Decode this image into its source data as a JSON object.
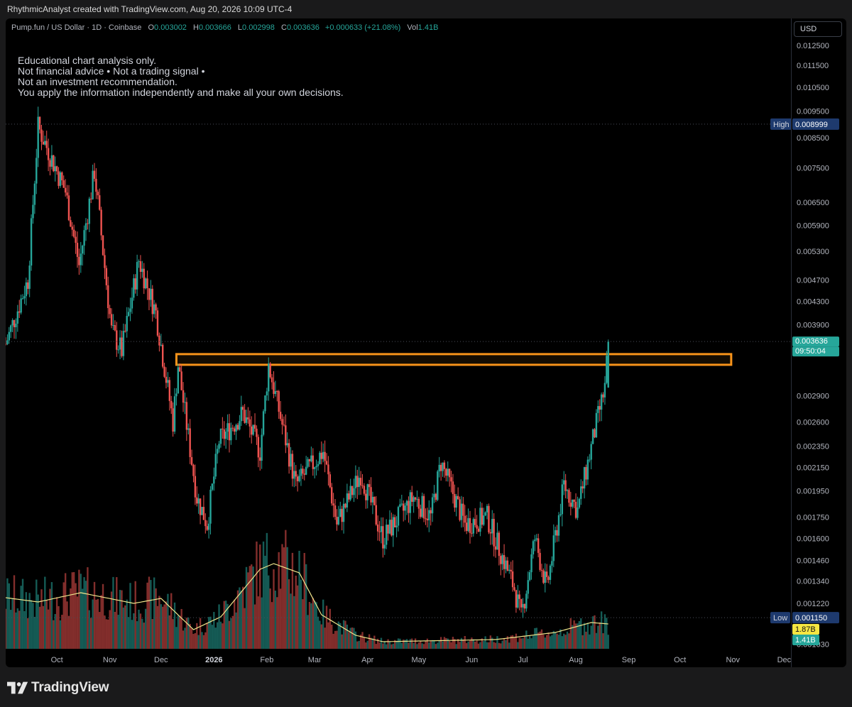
{
  "header": {
    "caption": "RhythmicAnalyst created with TradingView.com, Aug 20, 2026 10:09 UTC-4"
  },
  "legend": {
    "symbol": "Pump.fun / US Dollar · 1D · Coinbase",
    "o_label": "O",
    "o": "0.003002",
    "h_label": "H",
    "h": "0.003666",
    "l_label": "L",
    "l": "0.002998",
    "c_label": "C",
    "c": "0.003636",
    "change": "+0.000633 (+21.08%)",
    "vol_label": "Vol",
    "vol": "1.41B"
  },
  "disclaimer": [
    "Educational chart analysis only.",
    "Not financial advice • Not a trading signal •",
    "Not an investment recommendation.",
    "You apply the information independently and make all your own decisions."
  ],
  "currency_button": "USD",
  "footer": {
    "brand": "TradingView"
  },
  "colors": {
    "up": "#26a69a",
    "down": "#ef5350",
    "zone": "#f7931a",
    "volume_ma": "#f0e68c",
    "high_tag": "#1e3a6e",
    "low_tag": "#1e3a6e",
    "price_tag": "#26a69a",
    "volma_tag": "#f5e642"
  },
  "icons": {
    "logo": "tradingview-logo-icon",
    "chart": "candlestick-chart"
  },
  "chart_data": {
    "type": "candlestick",
    "title": "Pump.fun / US Dollar · 1D · Coinbase",
    "y_scale": "log",
    "ylim": [
      0.00101,
      0.0131
    ],
    "y_ticks": [
      "0.012500",
      "0.011500",
      "0.010500",
      "0.009500",
      "0.008500",
      "0.007500",
      "0.006500",
      "0.005900",
      "0.005300",
      "0.004700",
      "0.004300",
      "0.003900",
      "0.002900",
      "0.002600",
      "0.002350",
      "0.002150",
      "0.001950",
      "0.001750",
      "0.001600",
      "0.001460",
      "0.001340",
      "0.001220",
      "0.001030"
    ],
    "x_ticks": [
      {
        "label": "Oct",
        "date": "2025-10-01"
      },
      {
        "label": "Nov",
        "date": "2025-11-01"
      },
      {
        "label": "Dec",
        "date": "2025-12-01"
      },
      {
        "label": "2026",
        "date": "2026-01-01",
        "bold": true
      },
      {
        "label": "Feb",
        "date": "2026-02-01"
      },
      {
        "label": "Mar",
        "date": "2026-03-01"
      },
      {
        "label": "Apr",
        "date": "2026-04-01"
      },
      {
        "label": "May",
        "date": "2026-05-01"
      },
      {
        "label": "Jun",
        "date": "2026-06-01"
      },
      {
        "label": "Jul",
        "date": "2026-07-01"
      },
      {
        "label": "Aug",
        "date": "2026-08-01"
      },
      {
        "label": "Sep",
        "date": "2026-09-01"
      },
      {
        "label": "Oct",
        "date": "2026-10-01"
      },
      {
        "label": "Nov",
        "date": "2026-11-01"
      },
      {
        "label": "Dec",
        "date": "2026-12-01"
      }
    ],
    "x_range": [
      "2025-09-01",
      "2026-12-05"
    ],
    "key_prices": [
      "2025-09-01",
      0.0036,
      "2025-09-14",
      0.0047,
      "2025-09-20",
      0.0089,
      "2025-10-06",
      0.0068,
      "2025-10-14",
      0.005,
      "2025-10-23",
      0.0074,
      "2025-11-02",
      0.0038,
      "2025-11-08",
      0.0035,
      "2025-11-18",
      0.0051,
      "2025-11-28",
      0.0041,
      "2025-12-08",
      0.0026,
      "2025-12-11",
      0.0033,
      "2025-12-22",
      0.0019,
      "2025-12-28",
      0.0017,
      "2026-01-04",
      0.0024,
      "2026-01-18",
      0.0027,
      "2026-01-28",
      0.0023,
      "2026-02-02",
      0.0033,
      "2026-02-18",
      0.002,
      "2026-03-06",
      0.0023,
      "2026-03-14",
      0.0017,
      "2026-03-28",
      0.0021,
      "2026-04-10",
      0.0016,
      "2026-04-28",
      0.0019,
      "2026-05-08",
      0.00175,
      "2026-05-14",
      0.0022,
      "2026-05-28",
      0.0017,
      "2026-06-10",
      0.00175,
      "2026-06-26",
      0.0013,
      "2026-06-30",
      0.00115,
      "2026-07-08",
      0.0016,
      "2026-07-15",
      0.0013,
      "2026-07-25",
      0.002,
      "2026-08-02",
      0.0018,
      "2026-08-12",
      0.0025,
      "2026-08-18",
      0.003,
      "2026-08-20",
      0.003636
    ],
    "last_candle": {
      "date": "2026-08-20",
      "open": 0.003002,
      "high": 0.003666,
      "low": 0.002998,
      "close": 0.003636,
      "volume": "1.41B"
    },
    "resistance_zone": {
      "from": "2025-12-10",
      "to": "2026-10-31",
      "low": 0.0033,
      "high": 0.00345
    },
    "high_marker": {
      "label": "High",
      "value": "0.008999",
      "price": 0.008999
    },
    "low_marker": {
      "label": "Low",
      "value": "0.001150",
      "price": 0.00115
    },
    "price_tag": {
      "value": "0.003636",
      "countdown": "09:50:04",
      "price": 0.003636
    },
    "volume_ma_tag": "1.87B",
    "volume_tag": "1.41B",
    "volume_ma_series": [
      "2025-09-01",
      0.72,
      "2025-09-20",
      0.66,
      "2025-10-15",
      0.79,
      "2025-11-15",
      0.64,
      "2025-12-01",
      0.71,
      "2025-12-20",
      0.27,
      "2026-01-05",
      0.45,
      "2026-01-28",
      1.12,
      "2026-02-05",
      1.2,
      "2026-02-20",
      1.07,
      "2026-03-05",
      0.48,
      "2026-03-25",
      0.19,
      "2026-04-10",
      0.1,
      "2026-06-15",
      0.13,
      "2026-07-20",
      0.23,
      "2026-08-10",
      0.37,
      "2026-08-20",
      0.35
    ]
  }
}
